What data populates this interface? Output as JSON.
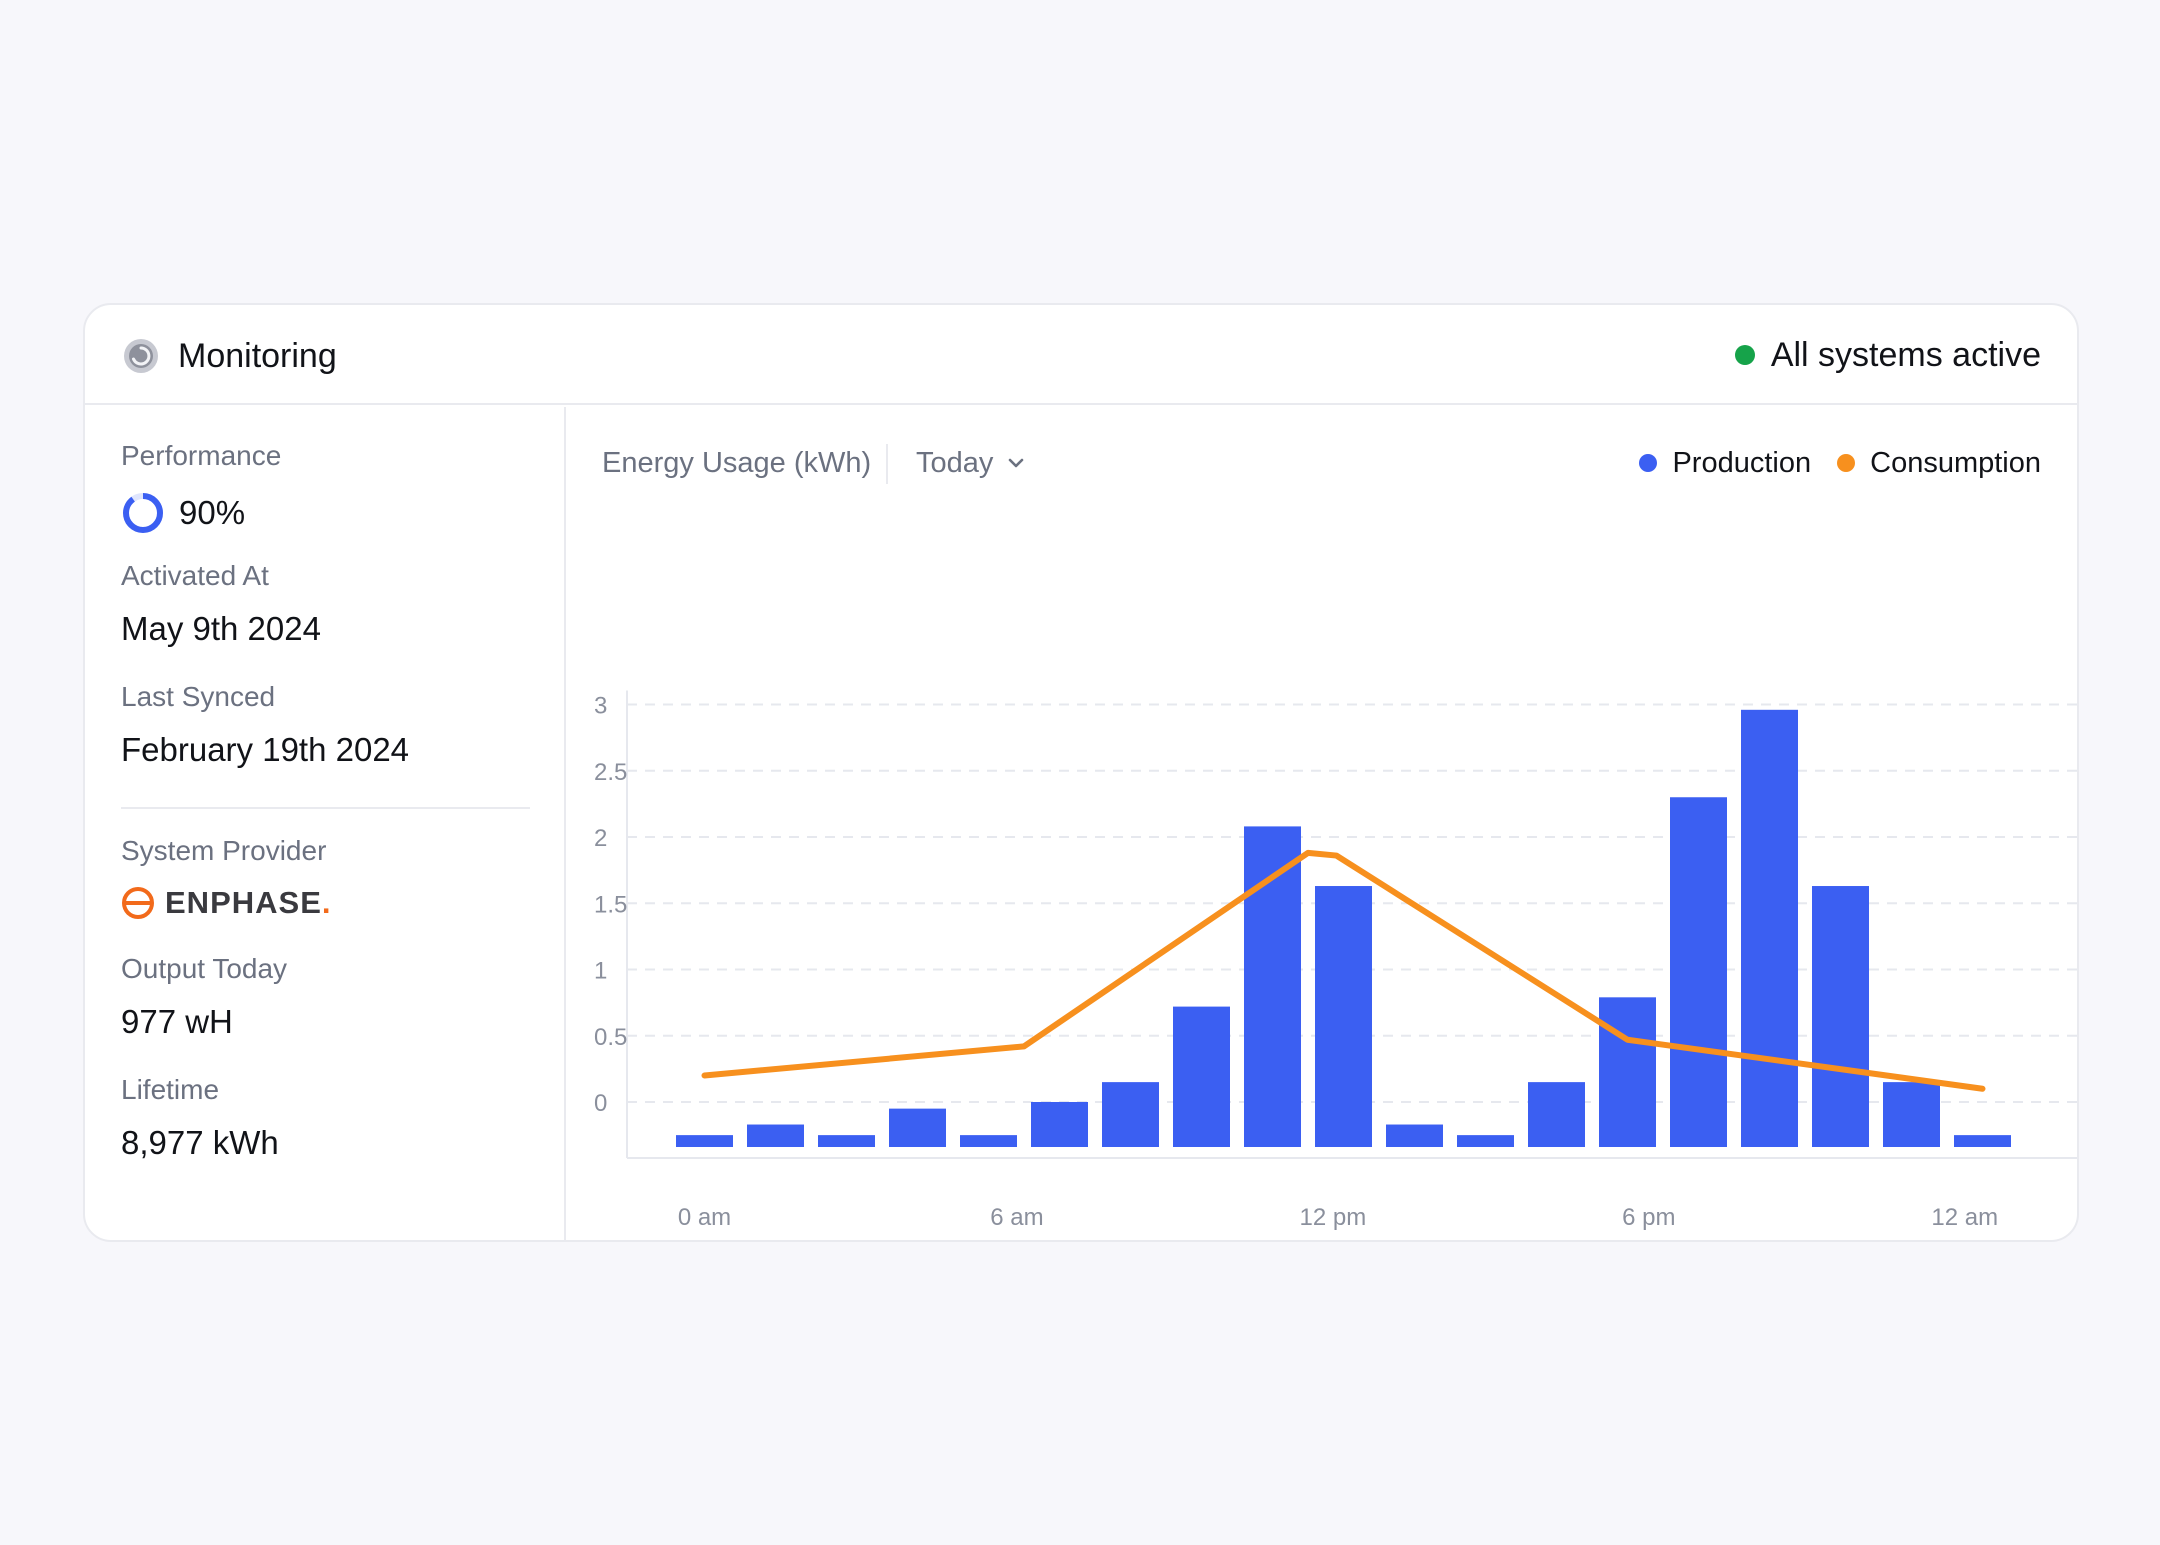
{
  "header": {
    "title": "Monitoring",
    "status": "All systems active"
  },
  "colors": {
    "production": "#3b5ff2",
    "consumption": "#f7901e",
    "status_ok": "#16a34a",
    "brand_enphase": "#f26a1b"
  },
  "sidebar": {
    "performance_label": "Performance",
    "performance_value": "90%",
    "performance_fraction": 0.9,
    "activated_label": "Activated At",
    "activated_value": "May 9th 2024",
    "synced_label": "Last Synced",
    "synced_value": "February 19th 2024",
    "provider_label": "System Provider",
    "provider_name": "ENPHASE",
    "provider_suffix": ".",
    "output_label": "Output Today",
    "output_value": "977 wH",
    "lifetime_label": "Lifetime",
    "lifetime_value": "8,977 kWh"
  },
  "chart_header": {
    "title": "Energy Usage (kWh)",
    "range": "Today"
  },
  "chart_data": {
    "type": "bar",
    "legend_position": "top-right",
    "grid": true,
    "ylim": [
      -0.32,
      3
    ],
    "yticks": [
      0,
      0.5,
      1,
      1.5,
      2,
      2.5,
      3
    ],
    "ytick_labels": [
      "0",
      "0.5",
      "1",
      "1.5",
      "2",
      "2.5",
      "3"
    ],
    "xtick_labels": [
      "0 am",
      "6 am",
      "12 pm",
      "6 pm",
      "12 am"
    ],
    "series": [
      {
        "name": "Production",
        "type": "bar",
        "values": [
          -0.25,
          -0.17,
          -0.25,
          -0.05,
          -0.25,
          0,
          0.15,
          0.72,
          2.08,
          1.63,
          -0.17,
          -0.25,
          0.15,
          0.79,
          2.3,
          2.96,
          1.63,
          0.15,
          -0.25
        ]
      },
      {
        "name": "Consumption",
        "type": "line",
        "points": [
          [
            0,
            0.2
          ],
          [
            4.5,
            0.42
          ],
          [
            8.5,
            1.88
          ],
          [
            8.9,
            1.86
          ],
          [
            13,
            0.47
          ],
          [
            18,
            0.1
          ]
        ]
      }
    ]
  }
}
